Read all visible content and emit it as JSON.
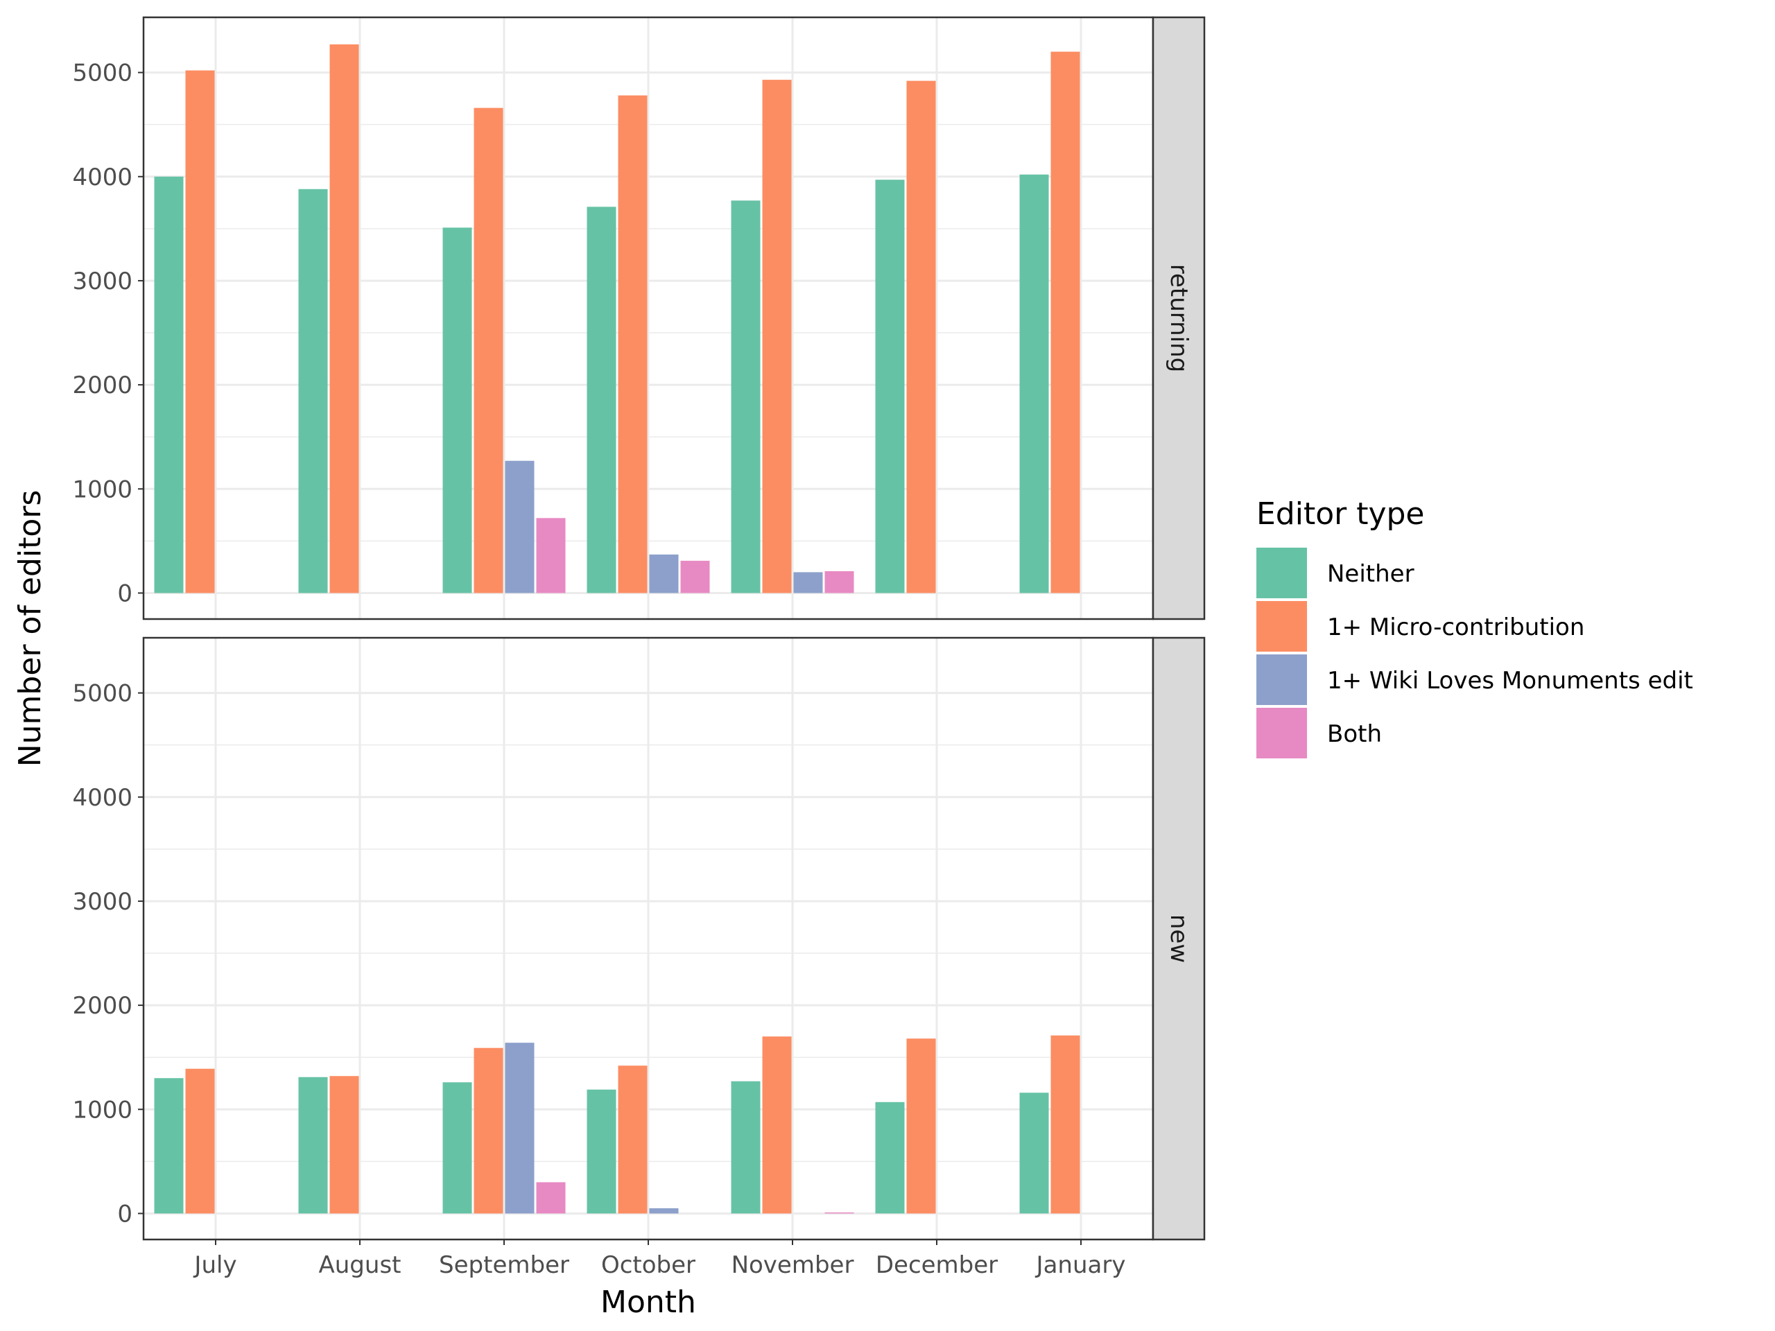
{
  "chart_data": {
    "type": "bar",
    "xlabel": "Month",
    "ylabel": "Number of editors",
    "ylim": [
      -250,
      5530
    ],
    "y_ticks": [
      0,
      1000,
      2000,
      3000,
      4000,
      5000
    ],
    "grid": true,
    "legend_position": "right",
    "legend_title": "Editor type",
    "categories": [
      "July",
      "August",
      "September",
      "October",
      "November",
      "December",
      "January"
    ],
    "series_names": [
      "Neither",
      "1+ Micro-contribution",
      "1+ Wiki Loves Monuments edit",
      "Both"
    ],
    "colors": [
      "#66c2a5",
      "#fc8d62",
      "#8da0cb",
      "#e78ac3"
    ],
    "panels": [
      {
        "strip": "returning",
        "series": [
          {
            "name": "Neither",
            "values": [
              4000,
              3880,
              3510,
              3710,
              3770,
              3970,
              4020
            ]
          },
          {
            "name": "1+ Micro-contribution",
            "values": [
              5020,
              5270,
              4660,
              4780,
              4930,
              4920,
              5200
            ]
          },
          {
            "name": "1+ Wiki Loves Monuments edit",
            "values": [
              null,
              null,
              1270,
              370,
              200,
              null,
              null
            ]
          },
          {
            "name": "Both",
            "values": [
              null,
              null,
              720,
              310,
              210,
              null,
              null
            ]
          }
        ]
      },
      {
        "strip": "new",
        "series": [
          {
            "name": "Neither",
            "values": [
              1300,
              1310,
              1260,
              1190,
              1270,
              1070,
              1160
            ]
          },
          {
            "name": "1+ Micro-contribution",
            "values": [
              1390,
              1320,
              1590,
              1420,
              1700,
              1680,
              1710
            ]
          },
          {
            "name": "1+ Wiki Loves Monuments edit",
            "values": [
              null,
              null,
              1640,
              50,
              null,
              null,
              null
            ]
          },
          {
            "name": "Both",
            "values": [
              null,
              null,
              300,
              null,
              10,
              null,
              null
            ]
          }
        ]
      }
    ]
  }
}
